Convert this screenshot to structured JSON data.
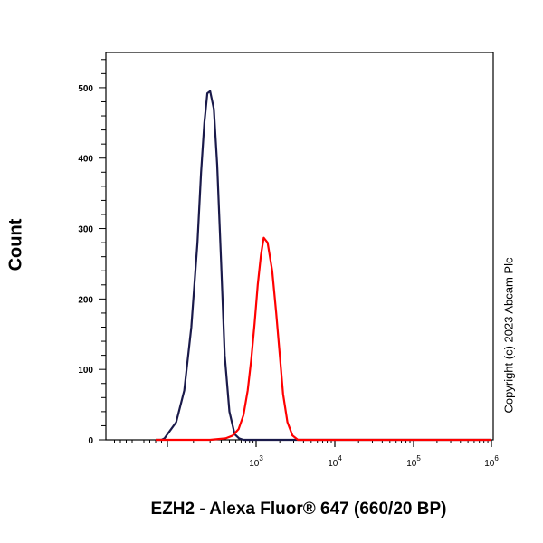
{
  "chart_data": {
    "type": "line",
    "title": "",
    "xlabel": "EZH2 - Alexa Fluor® 647 (660/20 BP)",
    "ylabel": "Count",
    "x_scale": "biexponential",
    "ylim": [
      0,
      550
    ],
    "y_ticks": [
      0,
      100,
      200,
      300,
      400,
      500
    ],
    "x_ticks": [
      {
        "base": "10",
        "exp": "3",
        "value": 1000
      },
      {
        "base": "10",
        "exp": "4",
        "value": 10000
      },
      {
        "base": "10",
        "exp": "5",
        "value": 100000
      },
      {
        "base": "10",
        "exp": "6",
        "value": 1000000
      }
    ],
    "grid": false,
    "series": [
      {
        "color": "#1a1a4a",
        "x": [
          -200,
          -100,
          -50,
          0,
          30,
          60,
          90,
          120,
          140,
          160,
          180,
          200,
          230,
          260,
          300,
          340,
          400,
          480,
          560,
          650,
          1000,
          10000,
          1000000
        ],
        "y": [
          0,
          0,
          2,
          8,
          25,
          70,
          160,
          280,
          380,
          450,
          492,
          495,
          470,
          390,
          250,
          120,
          40,
          8,
          2,
          0,
          0,
          0,
          0
        ]
      },
      {
        "color": "#ff0000",
        "x": [
          -200,
          200,
          350,
          450,
          550,
          650,
          750,
          850,
          950,
          1050,
          1150,
          1250,
          1400,
          1600,
          1800,
          2000,
          2200,
          2500,
          2900,
          3400,
          5000,
          100000,
          1000000
        ],
        "y": [
          0,
          0,
          2,
          6,
          15,
          35,
          70,
          115,
          165,
          220,
          262,
          287,
          280,
          240,
          180,
          120,
          65,
          25,
          6,
          0,
          0,
          0,
          0
        ]
      }
    ]
  },
  "copyright": "Copyright (c) 2023 Abcam Plc"
}
